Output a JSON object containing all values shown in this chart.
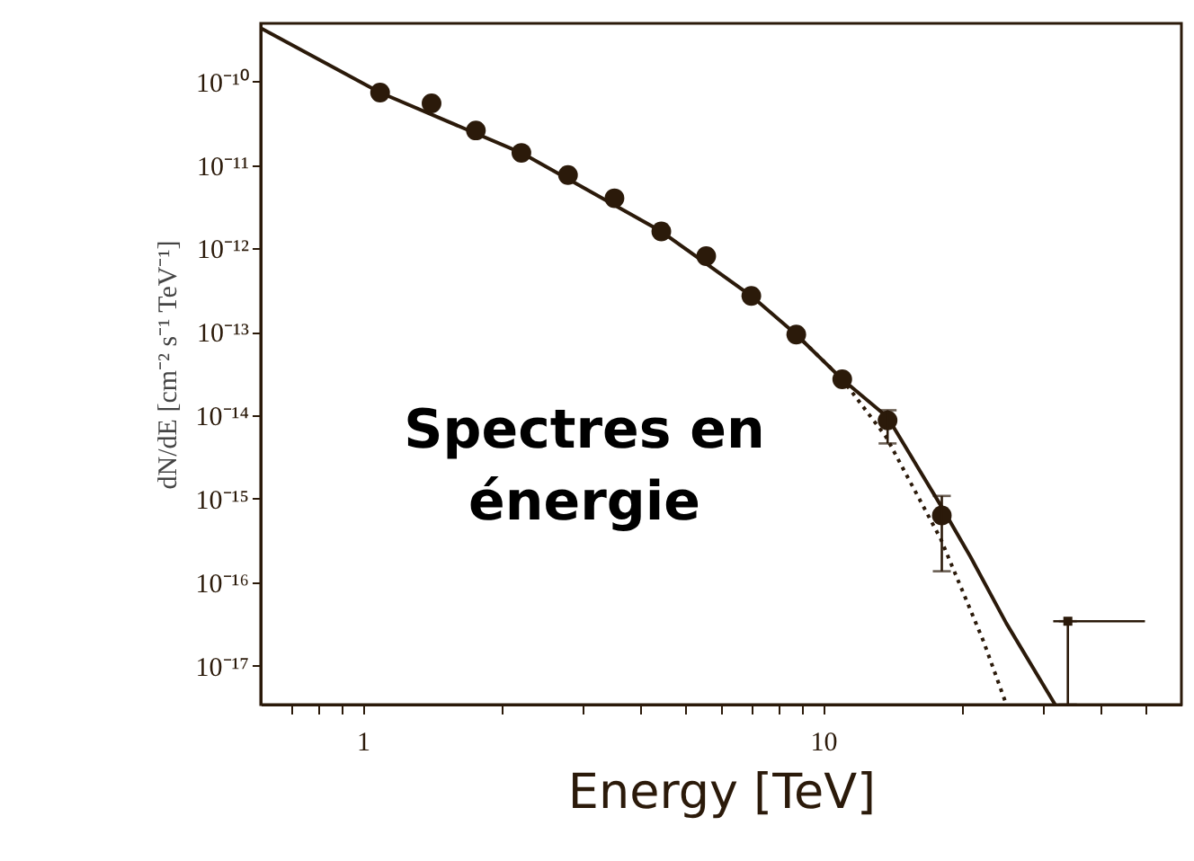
{
  "chart_data": {
    "type": "scatter",
    "xlabel": "Energy [TeV]",
    "ylabel": "dN/dE [cm⁻² s⁻¹ TeV⁻¹]",
    "annotations": [
      "Spectres en\nénergie"
    ],
    "log": "xy",
    "grid": false,
    "xlim": [
      0.6,
      60
    ],
    "ylim": [
      3.4e-18,
      5e-10
    ],
    "xticks": [
      {
        "value": 0.7,
        "label": null
      },
      {
        "value": 0.8,
        "label": null
      },
      {
        "value": 0.9,
        "label": null
      },
      1,
      {
        "value": 2,
        "label": null
      },
      {
        "value": 3,
        "label": null
      },
      {
        "value": 4,
        "label": null
      },
      {
        "value": 5,
        "label": null
      },
      {
        "value": 6,
        "label": null
      },
      {
        "value": 7,
        "label": null
      },
      {
        "value": 8,
        "label": null
      },
      {
        "value": 9,
        "label": null
      },
      10,
      {
        "value": 20,
        "label": null
      },
      {
        "value": 30,
        "label": null
      },
      {
        "value": 40,
        "label": null
      },
      {
        "value": 50,
        "label": null
      }
    ],
    "yticks": [
      {
        "value": 1e-10,
        "label": "10⁻¹⁰"
      },
      {
        "value": 1e-11,
        "label": "10⁻¹¹"
      },
      {
        "value": 1e-12,
        "label": "10⁻¹²"
      },
      {
        "value": 1e-13,
        "label": "10⁻¹³"
      },
      {
        "value": 1e-14,
        "label": "10⁻¹⁴"
      },
      {
        "value": 1e-15,
        "label": "10⁻¹⁵"
      },
      {
        "value": 1e-16,
        "label": "10⁻¹⁶"
      },
      {
        "value": 1e-17,
        "label": "10⁻¹⁷"
      }
    ],
    "series": [
      {
        "type": "scatter",
        "marker": "circle",
        "color": "#2b1a0a",
        "x": [
          1.09,
          1.41,
          1.76,
          2.21,
          2.79,
          3.52,
          4.45,
          5.57,
          6.98,
          8.74,
          11.0,
          13.8,
          18.1
        ],
        "values": [
          7.4e-11,
          5.5e-11,
          2.6e-11,
          1.4e-11,
          7.6e-12,
          4e-12,
          1.6e-12,
          8.1e-13,
          2.7e-13,
          9.3e-14,
          2.7e-14,
          8.7e-15,
          6.3e-16
        ],
        "errors": [
          null,
          null,
          null,
          null,
          null,
          null,
          null,
          null,
          null,
          null,
          null,
          [
            4.6e-15,
            1.15e-14
          ],
          [
            1.35e-16,
            1.08e-15
          ]
        ]
      },
      {
        "type": "scatter",
        "marker": "square",
        "color": "#2b1a0a",
        "x": [
          34
        ],
        "values": [
          3.4e-17
        ],
        "xerrors": [
          [
            31.6,
            50
          ]
        ],
        "errors": [
          [
            3.4e-18,
            3.4e-17
          ]
        ]
      },
      {
        "type": "line",
        "line_style": "solid",
        "color": "#2b1a0a",
        "x": [
          0.6,
          1.09,
          2.21,
          4.45,
          6.98,
          8.74,
          11.0,
          13.8,
          18.1,
          20.9,
          25,
          31.9
        ],
        "values": [
          4.4e-10,
          7.4e-11,
          1.4e-11,
          1.6e-12,
          2.7e-13,
          9.3e-14,
          2.7e-14,
          9.5e-15,
          7.9e-16,
          2e-16,
          3.2e-17,
          3.4e-18
        ]
      },
      {
        "type": "line",
        "line_style": "dotted",
        "color": "#2b1a0a",
        "x": [
          8.74,
          11.0,
          13.7,
          18.0,
          22.3,
          25
        ],
        "values": [
          9.3e-14,
          2.7e-14,
          5.5e-15,
          3.3e-16,
          1.95e-17,
          3.4e-18
        ]
      }
    ]
  }
}
